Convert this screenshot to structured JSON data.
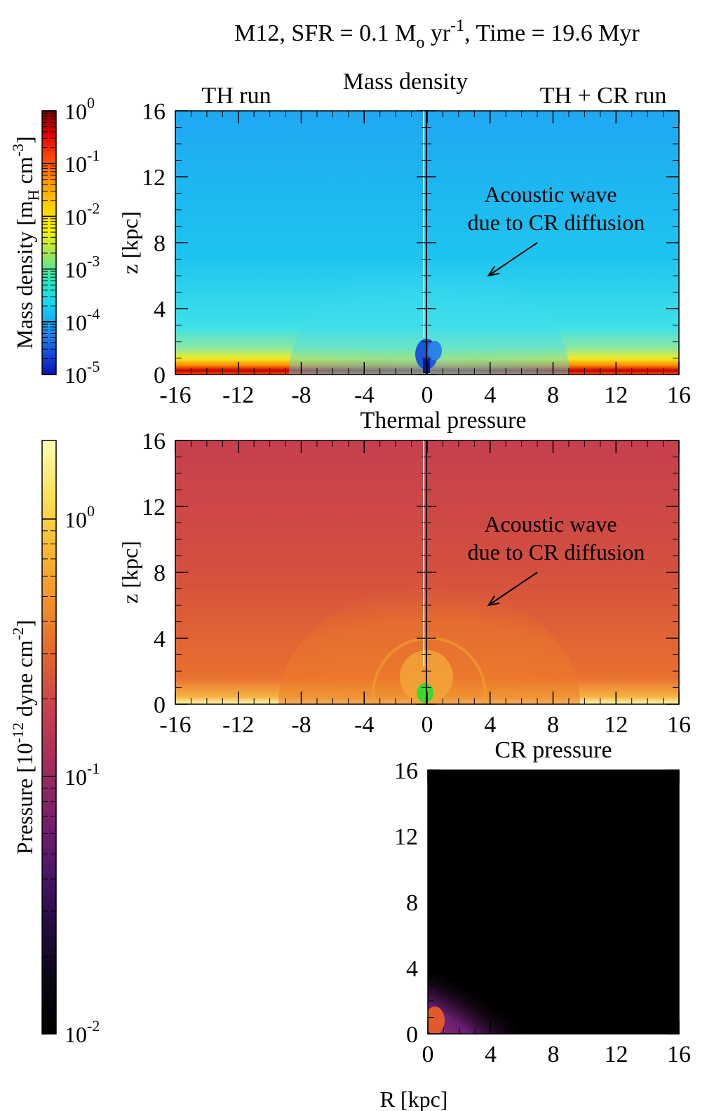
{
  "figure_title": {
    "prefix": "M12, SFR = 0.1 M",
    "msun_sub": "o",
    "unit": " yr",
    "exponent": "-1",
    "suffix": ", Time = 19.6 Myr"
  },
  "colors": {
    "density_bg": "#1fb4f2",
    "thermal_bg": "#c8404e",
    "cr_bg": "#000000"
  },
  "colorbars": [
    {
      "id": "density",
      "label_prefix": "Mass density [m",
      "label_sub": "H",
      "label_mid": " cm",
      "label_sup": "-3",
      "label_suffix": "]",
      "ticks": [
        {
          "base": "10",
          "exp": "0"
        },
        {
          "base": "10",
          "exp": "-1"
        },
        {
          "base": "10",
          "exp": "-2"
        },
        {
          "base": "10",
          "exp": "-3"
        },
        {
          "base": "10",
          "exp": "-4"
        },
        {
          "base": "10",
          "exp": "-5"
        }
      ],
      "stops": [
        "#7a0000",
        "#e60000",
        "#ff4a00",
        "#ff9a00",
        "#ffd000",
        "#f5f500",
        "#9fe35a",
        "#2ee8b8",
        "#18d8f0",
        "#1a9cf0",
        "#1456e0",
        "#0a10b0"
      ]
    },
    {
      "id": "pressure",
      "label_prefix": "Pressure [10",
      "label_sup": "-12",
      "label_suffix": " dyne cm",
      "label_sup2": "-2",
      "label_end": "]",
      "ticks": [
        {
          "base": "10",
          "exp": "0"
        },
        {
          "base": "10",
          "exp": "-1"
        },
        {
          "base": "10",
          "exp": "-2"
        }
      ],
      "stops": [
        "#fdfdb4",
        "#fbe15a",
        "#f8b832",
        "#f2902a",
        "#e0652f",
        "#c8404e",
        "#a42d5c",
        "#7b1f6a",
        "#4c1568",
        "#230c3f",
        "#0a0614",
        "#000000"
      ]
    }
  ],
  "chart_data": [
    {
      "type": "heatmap",
      "title": "Mass density",
      "left_label": "TH run",
      "right_label": "TH + CR run",
      "xlabel": "",
      "ylabel": "z [kpc]",
      "x_range": [
        -16,
        16
      ],
      "y_range": [
        0,
        16
      ],
      "x_ticks": [
        "-16",
        "-12",
        "-8",
        "-4",
        "0",
        "4",
        "8",
        "12",
        "16"
      ],
      "y_ticks": [
        "0",
        "4",
        "8",
        "12",
        "16"
      ],
      "annotation": [
        "Acoustic wave",
        "due to CR diffusion"
      ],
      "arrow_tip": {
        "x": 3.9,
        "y": 6.0
      },
      "arrow_tail": {
        "x": 7.0,
        "y": 8.0
      }
    },
    {
      "type": "heatmap",
      "title": "Thermal pressure",
      "xlabel": "",
      "ylabel": "z [kpc]",
      "x_range": [
        -16,
        16
      ],
      "y_range": [
        0,
        16
      ],
      "x_ticks": [
        "-16",
        "-12",
        "-8",
        "-4",
        "0",
        "4",
        "8",
        "12",
        "16"
      ],
      "y_ticks": [
        "0",
        "4",
        "8",
        "12",
        "16"
      ],
      "annotation": [
        "Acoustic wave",
        "due to CR diffusion"
      ],
      "arrow_tip": {
        "x": 3.9,
        "y": 6.0
      },
      "arrow_tail": {
        "x": 7.0,
        "y": 8.0
      }
    },
    {
      "type": "heatmap",
      "title": "CR pressure",
      "xlabel": "R [kpc]",
      "ylabel": "",
      "x_range": [
        0,
        16
      ],
      "y_range": [
        0,
        16
      ],
      "x_ticks": [
        "0",
        "4",
        "8",
        "12",
        "16"
      ],
      "y_ticks": [
        "0",
        "4",
        "8",
        "12",
        "16"
      ]
    }
  ]
}
